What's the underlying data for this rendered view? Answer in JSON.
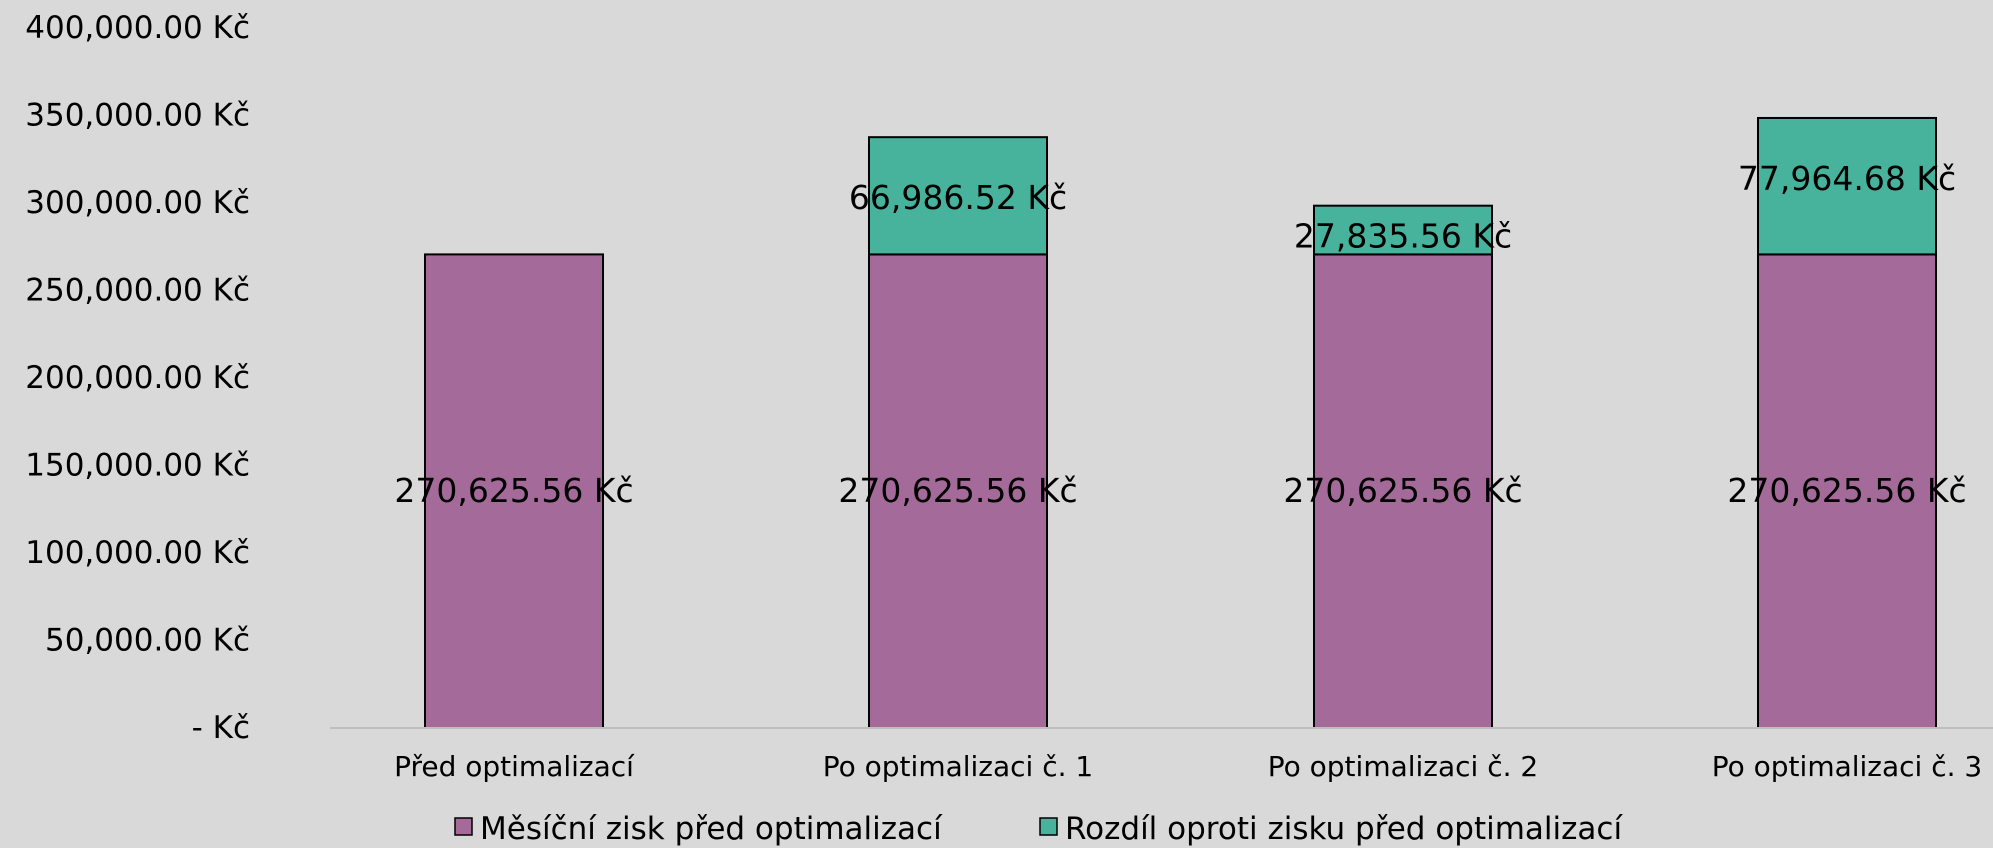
{
  "chart_data": {
    "type": "bar",
    "stacked": true,
    "categories": [
      "Před optimalizací",
      "Po optimalizaci č. 1",
      "Po optimalizaci č. 2",
      "Po optimalizaci č. 3"
    ],
    "series": [
      {
        "name": "Měsíční zisk před optimalizací",
        "values": [
          270625.56,
          270625.56,
          270625.56,
          270625.56
        ],
        "labels": [
          "270,625.56 Kč",
          "270,625.56 Kč",
          "270,625.56 Kč",
          "270,625.56 Kč"
        ],
        "color": "#a46a99"
      },
      {
        "name": "Rozdíl oproti zisku před optimalizací",
        "values": [
          0,
          66986.52,
          27835.56,
          77964.68
        ],
        "labels": [
          "",
          "66,986.52 Kč",
          "27,835.56 Kč",
          "77,964.68 Kč"
        ],
        "color": "#47b39c"
      }
    ],
    "ylim": [
      0,
      400000
    ],
    "yticks": [
      0,
      50000,
      100000,
      150000,
      200000,
      250000,
      300000,
      350000,
      400000
    ],
    "ytick_labels": [
      "-   Kč",
      "50,000.00 Kč",
      "100,000.00 Kč",
      "150,000.00 Kč",
      "200,000.00 Kč",
      "250,000.00 Kč",
      "300,000.00 Kč",
      "350,000.00 Kč",
      "400,000.00 Kč"
    ],
    "grid": false,
    "legend_position": "bottom",
    "title": "",
    "xlabel": "",
    "ylabel": ""
  },
  "colors": {
    "background": "#d9d9d9",
    "bar_outline": "#000000",
    "text": "#000000"
  }
}
